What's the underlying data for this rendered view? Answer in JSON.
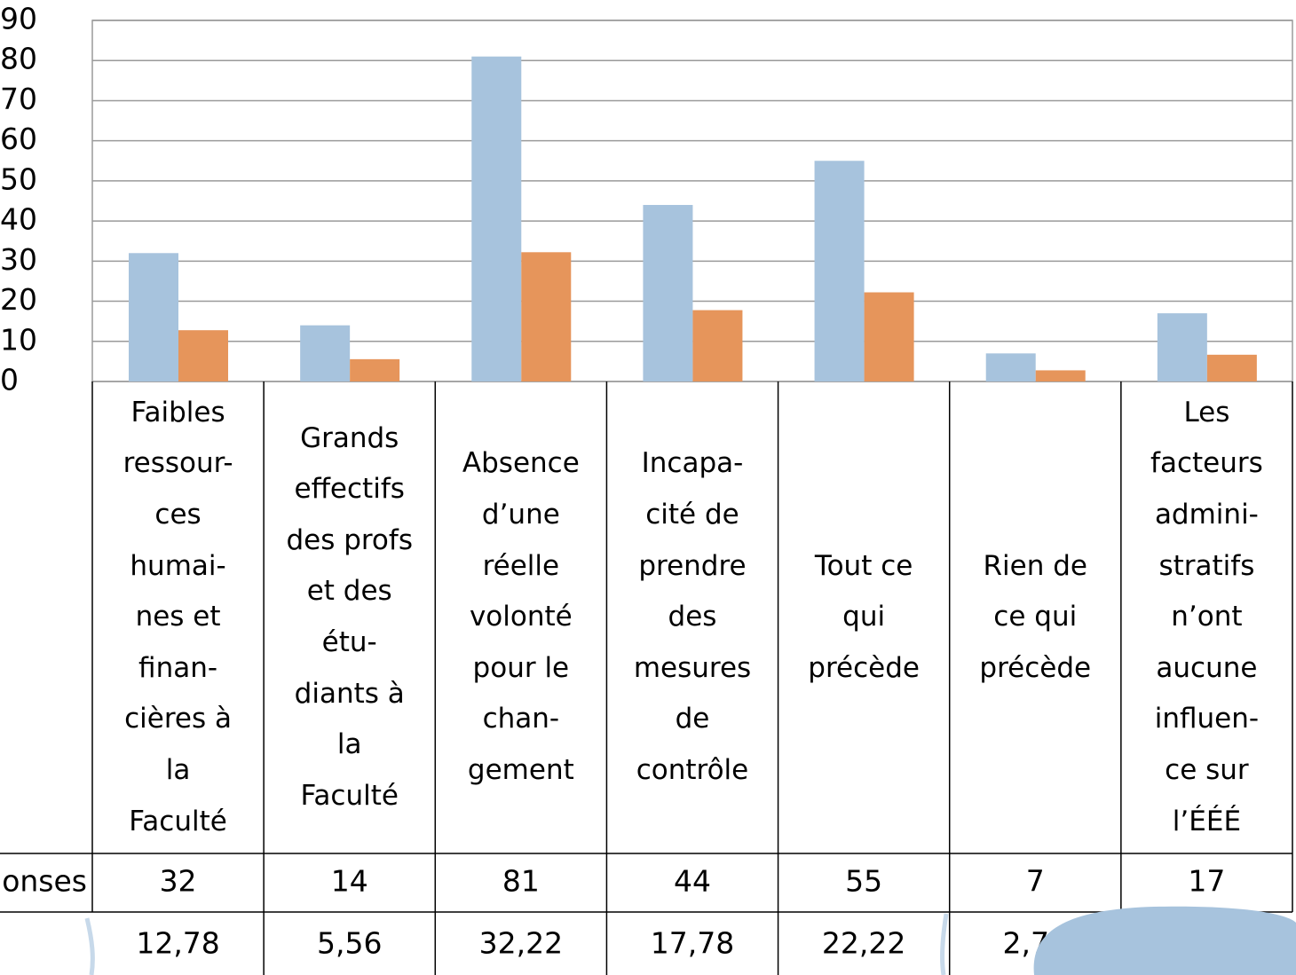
{
  "chart_data": {
    "type": "bar",
    "categories": [
      "Faibles\nressour-\nces\nhumai-\nnes et\nfinan-\ncières à\nla\nFaculté",
      "Grands\neffectifs\ndes profs\net des\nétu-\ndiants à\nla\nFaculté",
      "Absence\nd’une\nréelle\nvolonté\npour le\nchan-\ngement",
      "Incapa-\ncité de\nprendre\ndes\nmesures\nde\ncontrôle",
      "Tout ce\nqui\nprécède",
      "Rien de\nce qui\nprécède",
      "Les\nfacteurs\nadmini-\nstratifs\nn’ont\naucune\ninfluen-\nce sur\nl’ÉÉÉ"
    ],
    "series": [
      {
        "name": "onses",
        "color": "#a7c3dd",
        "values": [
          32,
          14,
          81,
          44,
          55,
          7,
          17
        ]
      },
      {
        "color": "#e6955b",
        "values": [
          12.78,
          5.56,
          32.22,
          17.78,
          22.22,
          2.78,
          6.67
        ],
        "value_labels": [
          "12,78",
          "5,56",
          "32,22",
          "17,78",
          "22,22",
          "2,78",
          null
        ]
      }
    ],
    "ylim": [
      0,
      90
    ],
    "yticks": [
      0,
      10,
      20,
      30,
      40,
      50,
      60,
      70,
      80,
      90
    ],
    "grid": true
  }
}
